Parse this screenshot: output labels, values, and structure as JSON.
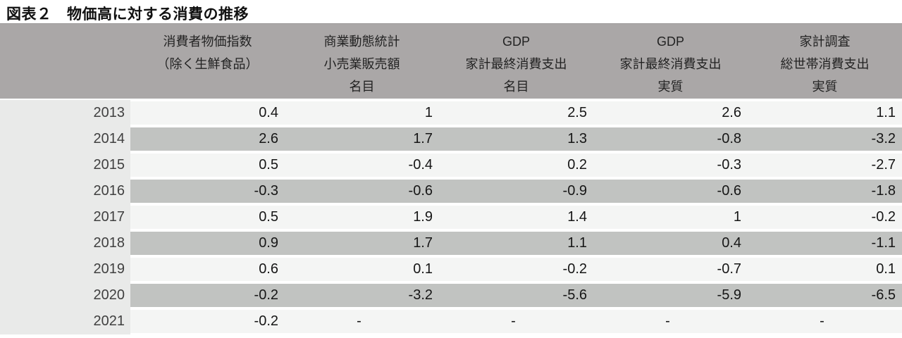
{
  "title": "図表２　物価高に対する消費の推移",
  "colors": {
    "header_bg": "#aaa7a7",
    "header_top_border": "#9c9999",
    "row_light": "#f4f5f4",
    "row_dark": "#c1c3c1",
    "year_column_bg": "#e9eae9",
    "title_text": "#111111",
    "value_text": "#161616",
    "year_text": "#404040"
  },
  "chart_data": {
    "type": "table",
    "title": "図表２　物価高に対する消費の推移",
    "categories": [
      "2013",
      "2014",
      "2015",
      "2016",
      "2017",
      "2018",
      "2019",
      "2020",
      "2021"
    ],
    "series": [
      {
        "name_lines": [
          "消費者物価指数",
          "（除く生鮮食品）",
          ""
        ],
        "values": [
          "0.4",
          "2.6",
          "0.5",
          "-0.3",
          "0.5",
          "0.9",
          "0.6",
          "-0.2",
          "-0.2"
        ]
      },
      {
        "name_lines": [
          "商業動態統計",
          "小売業販売額",
          "名目"
        ],
        "values": [
          "1",
          "1.7",
          "-0.4",
          "-0.6",
          "1.9",
          "1.7",
          "0.1",
          "-3.2",
          "-"
        ]
      },
      {
        "name_lines": [
          "GDP",
          "家計最終消費支出",
          "名目"
        ],
        "values": [
          "2.5",
          "1.3",
          "0.2",
          "-0.9",
          "1.4",
          "1.1",
          "-0.2",
          "-5.6",
          "-"
        ]
      },
      {
        "name_lines": [
          "GDP",
          "家計最終消費支出",
          "実質"
        ],
        "values": [
          "2.6",
          "-0.8",
          "-0.3",
          "-0.6",
          "1",
          "0.4",
          "-0.7",
          "-5.9",
          "-"
        ]
      },
      {
        "name_lines": [
          "家計調査",
          "総世帯消費支出",
          "実質"
        ],
        "values": [
          "1.1",
          "-3.2",
          "-2.7",
          "-1.8",
          "-0.2",
          "-1.1",
          "0.1",
          "-6.5",
          "-"
        ]
      }
    ],
    "layout": {
      "zebra_dark_years": [
        "2014",
        "2016",
        "2018",
        "2020"
      ],
      "missing_value_marker": "-"
    }
  }
}
